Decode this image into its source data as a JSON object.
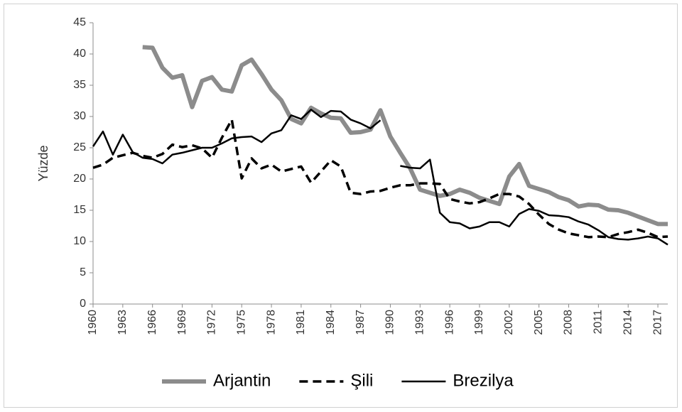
{
  "chart_data": {
    "type": "line",
    "ylabel": "Yüzde",
    "x": [
      1960,
      1961,
      1962,
      1963,
      1964,
      1965,
      1966,
      1967,
      1968,
      1969,
      1970,
      1971,
      1972,
      1973,
      1974,
      1975,
      1976,
      1977,
      1978,
      1979,
      1980,
      1981,
      1982,
      1983,
      1984,
      1985,
      1986,
      1987,
      1988,
      1989,
      1990,
      1991,
      1992,
      1993,
      1994,
      1995,
      1996,
      1997,
      1998,
      1999,
      2000,
      2001,
      2002,
      2003,
      2004,
      2005,
      2006,
      2007,
      2008,
      2009,
      2010,
      2011,
      2012,
      2013,
      2014,
      2015,
      2016,
      2017,
      2018
    ],
    "xlim": [
      1960,
      2018
    ],
    "xticks": [
      1960,
      1963,
      1966,
      1969,
      1972,
      1975,
      1978,
      1981,
      1984,
      1987,
      1990,
      1993,
      1996,
      1999,
      2002,
      2005,
      2008,
      2011,
      2014,
      2017
    ],
    "ylim": [
      0,
      45
    ],
    "yticks": [
      0,
      5,
      10,
      15,
      20,
      25,
      30,
      35,
      40,
      45
    ],
    "grid": false,
    "legend": "bottom",
    "series": [
      {
        "name": "Arjantin",
        "color": "#8c8c8c",
        "style": "solid",
        "values": [
          null,
          null,
          null,
          null,
          null,
          41.1,
          41.0,
          37.8,
          36.2,
          36.6,
          31.5,
          35.7,
          36.3,
          34.3,
          34.0,
          38.2,
          39.1,
          36.8,
          34.3,
          32.6,
          29.6,
          28.9,
          31.4,
          30.5,
          29.8,
          29.7,
          27.4,
          27.5,
          27.9,
          31.0,
          26.8,
          24.2,
          21.7,
          18.3,
          17.8,
          17.3,
          17.6,
          18.3,
          17.8,
          17.0,
          16.5,
          16.0,
          20.4,
          22.4,
          18.9,
          18.4,
          17.9,
          17.1,
          16.6,
          15.6,
          15.9,
          15.8,
          15.1,
          15.0,
          14.6,
          14.0,
          13.4,
          12.8,
          12.8
        ]
      },
      {
        "name": "Şili",
        "color": "#000000",
        "style": "dashed",
        "values": [
          21.8,
          22.3,
          23.4,
          23.8,
          24.2,
          23.7,
          23.4,
          24.0,
          25.5,
          25.1,
          25.4,
          24.9,
          23.4,
          26.6,
          29.5,
          20.1,
          23.3,
          21.7,
          22.3,
          21.2,
          21.6,
          22.0,
          19.4,
          21.2,
          23.0,
          22.0,
          17.8,
          17.6,
          18.0,
          18.1,
          18.6,
          19.0,
          19.0,
          19.3,
          19.3,
          19.2,
          16.8,
          16.4,
          16.1,
          16.3,
          16.9,
          17.6,
          17.6,
          17.2,
          16.0,
          14.3,
          12.8,
          11.9,
          11.3,
          11.0,
          10.7,
          10.8,
          10.7,
          11.2,
          11.5,
          11.9,
          11.4,
          10.7,
          10.8
        ]
      },
      {
        "name": "Brezilya",
        "color": "#000000",
        "style": "solid",
        "values": [
          25.2,
          27.6,
          23.9,
          27.1,
          24.3,
          23.4,
          23.2,
          22.5,
          23.9,
          24.2,
          24.6,
          25.0,
          25.0,
          25.7,
          26.5,
          26.7,
          26.8,
          25.9,
          27.3,
          27.8,
          30.2,
          29.6,
          31.1,
          29.9,
          30.9,
          30.8,
          29.5,
          28.9,
          28.1,
          29.4,
          null,
          22.1,
          21.8,
          21.7,
          23.1,
          14.6,
          13.1,
          12.9,
          12.1,
          12.4,
          13.1,
          13.1,
          12.4,
          14.4,
          15.2,
          14.9,
          14.2,
          14.1,
          13.9,
          13.2,
          12.7,
          11.8,
          10.7,
          10.4,
          10.3,
          10.5,
          10.8,
          10.5,
          9.5
        ]
      }
    ]
  }
}
